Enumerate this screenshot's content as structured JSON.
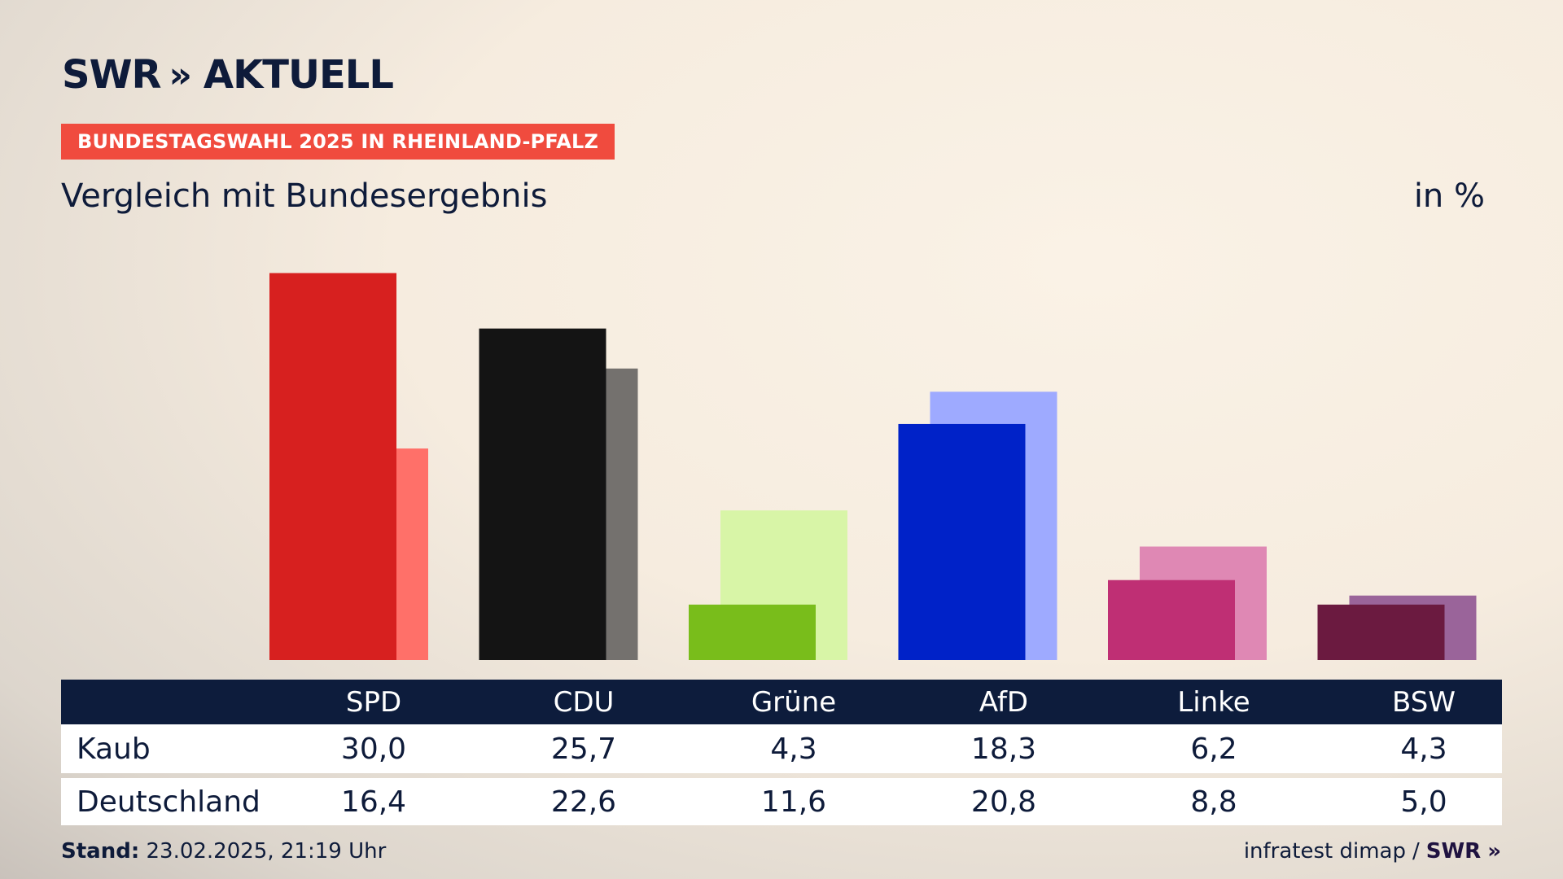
{
  "brand": {
    "name": "SWR",
    "chevrons": "»",
    "product": "AKTUELL"
  },
  "kicker": "BUNDESTAGSWAHL 2025 IN RHEINLAND-PFALZ",
  "subtitle": "Vergleich mit Bundesergebnis",
  "unit": "in %",
  "chart_data": {
    "type": "bar",
    "title": "Vergleich mit Bundesergebnis",
    "ylabel": "in %",
    "ylim": [
      0,
      32
    ],
    "categories": [
      "SPD",
      "CDU",
      "Grüne",
      "AfD",
      "Linke",
      "BSW"
    ],
    "series": [
      {
        "name": "Kaub",
        "values": [
          30.0,
          25.7,
          4.3,
          18.3,
          6.2,
          4.3
        ],
        "colors": [
          "#d7201f",
          "#141414",
          "#79bd1b",
          "#0022c8",
          "#bf2f74",
          "#6b1a40"
        ]
      },
      {
        "name": "Deutschland",
        "values": [
          16.4,
          22.6,
          11.6,
          20.8,
          8.8,
          5.0
        ],
        "colors": [
          "#ff7069",
          "#74716e",
          "#d8f5a7",
          "#9eaaff",
          "#df88b4",
          "#9a649a"
        ]
      }
    ]
  },
  "table": {
    "headers": [
      "SPD",
      "CDU",
      "Grüne",
      "AfD",
      "Linke",
      "BSW"
    ],
    "rows": [
      {
        "label": "Kaub",
        "values": [
          "30,0",
          "25,7",
          "4,3",
          "18,3",
          "6,2",
          "4,3"
        ]
      },
      {
        "label": "Deutschland",
        "values": [
          "16,4",
          "22,6",
          "11,6",
          "20,8",
          "8,8",
          "5,0"
        ]
      }
    ]
  },
  "footer": {
    "stand_label": "Stand:",
    "stand_value": "23.02.2025, 21:19 Uhr",
    "source": "infratest dimap",
    "separator": "/",
    "source_brand": "SWR"
  }
}
